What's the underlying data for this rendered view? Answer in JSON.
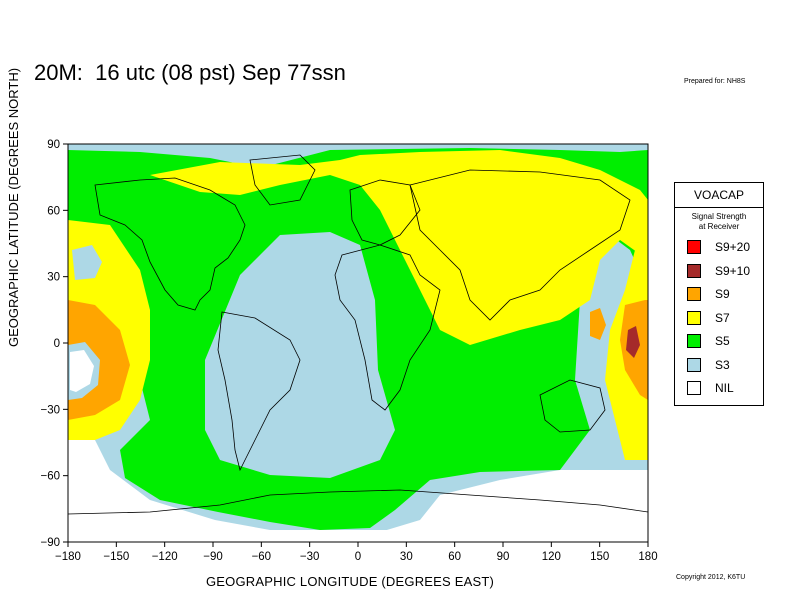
{
  "title": "20M:  16 utc (08 pst) Sep 77ssn",
  "prepared_for": "Prepared for: NH8S",
  "copyright": "Copyright 2012, K6TU",
  "x_axis": {
    "label": "GEOGRAPHIC LONGITUDE (DEGREES EAST)",
    "ticks": [
      "−180",
      "−150",
      "−120",
      "−90",
      "−60",
      "−30",
      "0",
      "30",
      "60",
      "90",
      "120",
      "150",
      "180"
    ]
  },
  "y_axis": {
    "label": "GEOGRAPHIC LATITUDE (DEGREES NORTH)",
    "ticks": [
      "90",
      "60",
      "30",
      "0",
      "−30",
      "−60",
      "−90"
    ]
  },
  "legend": {
    "heading": "VOACAP",
    "subtitle_line1": "Signal Strength",
    "subtitle_line2": "at Receiver",
    "items": [
      {
        "label": "S9+20",
        "color": "#ff0000"
      },
      {
        "label": "S9+10",
        "color": "#a52a2a"
      },
      {
        "label": "S9",
        "color": "#ffa500"
      },
      {
        "label": "S7",
        "color": "#ffff00"
      },
      {
        "label": "S5",
        "color": "#00ee00"
      },
      {
        "label": "S3",
        "color": "#add8e6"
      },
      {
        "label": "NIL",
        "color": "#ffffff"
      }
    ]
  },
  "colors": {
    "s9": "#ffa500",
    "s7": "#ffff00",
    "s5": "#00ee00",
    "s3": "#add8e6",
    "s910": "#a52a2a",
    "nil": "#ffffff",
    "coast": "#000000"
  }
}
